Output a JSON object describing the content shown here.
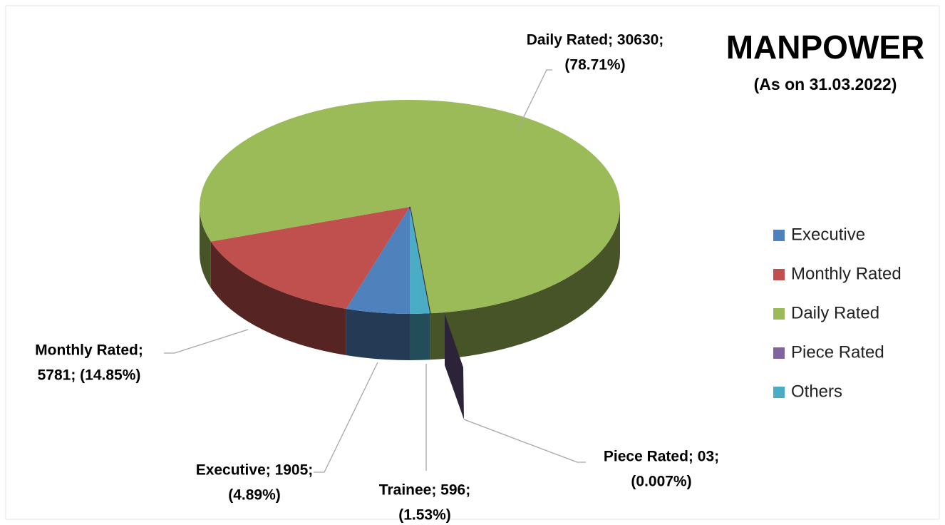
{
  "chart_data": {
    "type": "pie",
    "title": "MANPOWER",
    "subtitle": "(As on 31.03.2022)",
    "categories": [
      "Executive",
      "Monthly Rated",
      "Daily Rated",
      "Piece Rated",
      "Others"
    ],
    "values": [
      1905,
      5781,
      30630,
      3,
      596
    ],
    "value_labels": [
      [
        "Executive; 1905;",
        "(4.89%)"
      ],
      [
        "Monthly Rated;",
        "5781; (14.85%)"
      ],
      [
        "Daily Rated; 30630;",
        "(78.71%)"
      ],
      [
        "Piece Rated; 03;",
        "(0.007%)"
      ],
      [
        "Trainee; 596;",
        "(1.53%)"
      ]
    ],
    "colors": [
      "#4f81bd",
      "#c0504d",
      "#9bbb59",
      "#8064a2",
      "#4bacc6"
    ],
    "start_angle": 180,
    "legend": "right"
  }
}
